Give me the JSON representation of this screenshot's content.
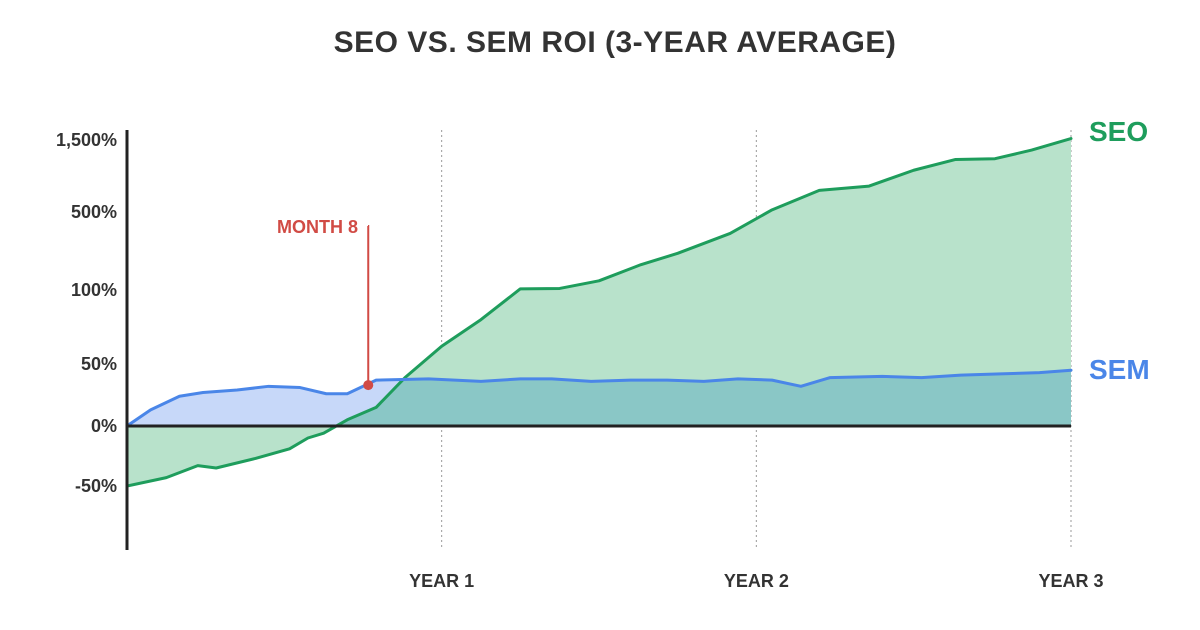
{
  "chart_data": {
    "type": "area",
    "title": "SEO VS. SEM ROI (3-YEAR AVERAGE)",
    "xlabel": "",
    "ylabel": "",
    "x_unit": "months",
    "xlim": [
      0,
      36
    ],
    "x_ticks": [
      {
        "x": 12,
        "label": "YEAR 1"
      },
      {
        "x": 24,
        "label": "YEAR 2"
      },
      {
        "x": 36,
        "label": "YEAR 3"
      }
    ],
    "y_scale": "nonlinear (labelled ticks evenly spaced)",
    "y_ticks": [
      {
        "value": -50,
        "label": "-50%"
      },
      {
        "value": 0,
        "label": "0%"
      },
      {
        "value": 50,
        "label": "50%"
      },
      {
        "value": 100,
        "label": "100%"
      },
      {
        "value": 500,
        "label": "500%"
      },
      {
        "value": 1500,
        "label": "1,500%"
      }
    ],
    "grid": "vertical dotted lines at year ticks",
    "legend": "series labels at right end of lines",
    "series": [
      {
        "name": "SEO",
        "color": "#1e9d5c",
        "fill": "#b8e2cb",
        "points": [
          [
            0,
            -50
          ],
          [
            1.5,
            -43
          ],
          [
            2.7,
            -33
          ],
          [
            3.4,
            -35
          ],
          [
            4.9,
            -27
          ],
          [
            6.2,
            -19
          ],
          [
            6.9,
            -10
          ],
          [
            7.5,
            -6
          ],
          [
            8.4,
            5
          ],
          [
            9.5,
            15
          ],
          [
            10.6,
            39
          ],
          [
            12,
            62
          ],
          [
            13.5,
            80
          ],
          [
            15,
            106
          ],
          [
            16.5,
            108
          ],
          [
            18,
            147
          ],
          [
            19.6,
            230
          ],
          [
            21,
            288
          ],
          [
            23,
            390
          ],
          [
            24.6,
            530
          ],
          [
            26.4,
            800
          ],
          [
            28.3,
            860
          ],
          [
            30,
            1080
          ],
          [
            31.6,
            1230
          ],
          [
            33.1,
            1240
          ],
          [
            34.5,
            1360
          ],
          [
            36,
            1520
          ]
        ]
      },
      {
        "name": "SEM",
        "color": "#4a86e8",
        "fill": "#c4d6f9",
        "points": [
          [
            0,
            0
          ],
          [
            0.9,
            13
          ],
          [
            2,
            24
          ],
          [
            2.9,
            27
          ],
          [
            4.2,
            29
          ],
          [
            5.4,
            32
          ],
          [
            6.6,
            31
          ],
          [
            7.6,
            26
          ],
          [
            8.4,
            26
          ],
          [
            9.5,
            37
          ],
          [
            11.5,
            38
          ],
          [
            13.5,
            36
          ],
          [
            15,
            38
          ],
          [
            16.2,
            38
          ],
          [
            17.7,
            36
          ],
          [
            19.2,
            37
          ],
          [
            20.6,
            37
          ],
          [
            22,
            36
          ],
          [
            23.3,
            38
          ],
          [
            24.6,
            37
          ],
          [
            25.7,
            32
          ],
          [
            26.8,
            39
          ],
          [
            28.8,
            40
          ],
          [
            30.3,
            39
          ],
          [
            31.8,
            41
          ],
          [
            33.3,
            42
          ],
          [
            34.8,
            43
          ],
          [
            36,
            45
          ]
        ]
      }
    ],
    "annotations": [
      {
        "label": "MONTH 8",
        "x": 9.2,
        "y": 33,
        "color": "#d14b45"
      }
    ]
  }
}
